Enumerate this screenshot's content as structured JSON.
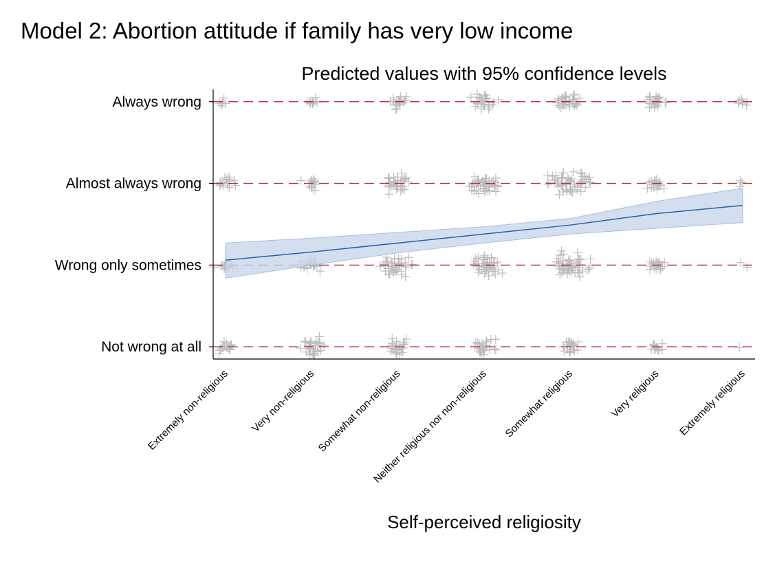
{
  "title": "Model 2: Abortion attitude if family has very low income",
  "chart_data": {
    "type": "scatter",
    "title": "Predicted values with 95% confidence levels",
    "xlabel": "Self-perceived religiosity",
    "ylabel": "",
    "categories": [
      "Extremely non-religious",
      "Very non-religious",
      "Somewhat non-religious",
      "Neither religious nor non-religious",
      "Somewhat religious",
      "Very religious",
      "Extremely religious"
    ],
    "y_levels": [
      "Not wrong at all",
      "Wrong only sometimes",
      "Almost always wrong",
      "Always wrong"
    ],
    "y_values": [
      1,
      2,
      3,
      4
    ],
    "ylim": [
      0.85,
      4.15
    ],
    "reference_lines": {
      "values": [
        1,
        2,
        3,
        4
      ],
      "style": "dashed",
      "color": "#b2223b"
    },
    "points_marker": "plus",
    "point_color": "#bdbdbd",
    "jitter_counts": [
      [
        18,
        14,
        16,
        6
      ],
      [
        30,
        22,
        14,
        10
      ],
      [
        24,
        40,
        32,
        22
      ],
      [
        26,
        44,
        44,
        28
      ],
      [
        22,
        56,
        58,
        36
      ],
      [
        12,
        20,
        18,
        24
      ],
      [
        1,
        2,
        3,
        8
      ]
    ],
    "fit": {
      "type": "line",
      "color": "#2b5ea7",
      "band_color": "#c6d6ea",
      "x": [
        1,
        2,
        3,
        4,
        5,
        6,
        7
      ],
      "y": [
        2.06,
        2.16,
        2.27,
        2.38,
        2.49,
        2.63,
        2.73
      ],
      "ci_low": [
        1.84,
        2.0,
        2.15,
        2.27,
        2.38,
        2.45,
        2.52
      ],
      "ci_high": [
        2.27,
        2.33,
        2.4,
        2.47,
        2.57,
        2.78,
        2.94
      ]
    },
    "grid": false,
    "legend": "none"
  }
}
